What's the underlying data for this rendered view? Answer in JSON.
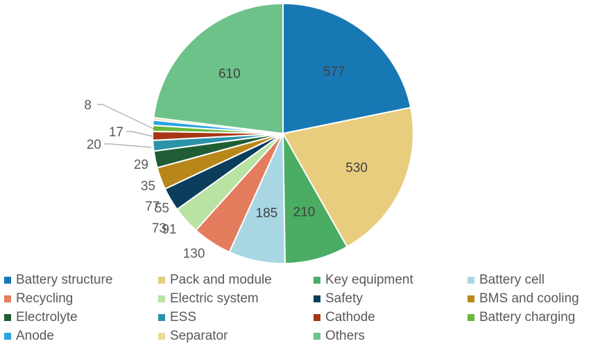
{
  "chart_data": {
    "type": "pie",
    "title": "",
    "categories": [
      "Battery structure",
      "Pack and module",
      "Key equipment",
      "Battery cell",
      "Recycling",
      "Electric system",
      "Safety",
      "BMS and cooling",
      "Electrolyte",
      "ESS",
      "Cathode",
      "Battery charging",
      "Anode",
      "Separator",
      "Others"
    ],
    "values": [
      577,
      530,
      210,
      185,
      130,
      91,
      77,
      73,
      55,
      35,
      29,
      20,
      17,
      8,
      610
    ],
    "colors": [
      "#1878b4",
      "#e9cd7f",
      "#4bac63",
      "#a8d7e3",
      "#e47c5e",
      "#b8e3a3",
      "#0b3d5c",
      "#b8871a",
      "#1f5e35",
      "#2a93a9",
      "#a73616",
      "#6bb63f",
      "#2ba3e1",
      "#f2d99a",
      "#6dc28a"
    ],
    "value_labels": [
      "577",
      "530",
      "210",
      "185",
      "130",
      "91",
      "77",
      "73",
      "55",
      "35",
      "29",
      "20",
      "17",
      "8",
      "610"
    ],
    "legend_position": "bottom"
  }
}
